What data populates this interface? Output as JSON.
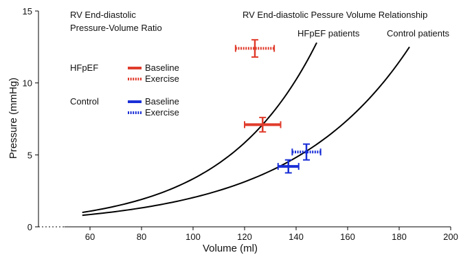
{
  "chart_data": {
    "type": "scatter",
    "xlabel": "Volume (ml)",
    "ylabel": "Pressure (mmHg)",
    "xlim": [
      40,
      200
    ],
    "ylim": [
      0,
      15
    ],
    "x_ticks": [
      60,
      80,
      100,
      120,
      140,
      160,
      180,
      200
    ],
    "y_ticks": [
      0,
      5,
      10,
      15
    ],
    "grid": false,
    "annotations": {
      "ratio_title_line1": "RV End-diastolic",
      "ratio_title_line2": "Pressure-Volume Ratio",
      "relationship_title": "RV End-diastolic Pessure Volume Relationship",
      "hfpef_curve_label": "HFpEF patients",
      "control_curve_label": "Control patients"
    },
    "legend": {
      "placement": "left",
      "groups": [
        {
          "group": "HFpEF",
          "color": "#e03c2c",
          "entries": [
            {
              "label": "Baseline",
              "style": "solid"
            },
            {
              "label": "Exercise",
              "style": "dotted"
            }
          ]
        },
        {
          "group": "Control",
          "color": "#1a2fd6",
          "entries": [
            {
              "label": "Baseline",
              "style": "solid"
            },
            {
              "label": "Exercise",
              "style": "dotted"
            }
          ]
        }
      ]
    },
    "curves": [
      {
        "label_key": "hfpef",
        "color": "#000000",
        "x_start": 57,
        "x_end": 148,
        "y_start": 1.0,
        "y_end": 12.8
      },
      {
        "label_key": "control",
        "color": "#000000",
        "x_start": 57,
        "x_end": 184,
        "y_start": 0.8,
        "y_end": 12.5
      }
    ],
    "points": [
      {
        "group": "HFpEF",
        "condition": "Baseline",
        "style": "solid",
        "color": "#e03c2c",
        "x": 127,
        "y": 7.1,
        "x_err": 7,
        "y_err": 0.5
      },
      {
        "group": "HFpEF",
        "condition": "Exercise",
        "style": "dotted",
        "color": "#e03c2c",
        "x": 124,
        "y": 12.4,
        "x_err": 7.5,
        "y_err": 0.6
      },
      {
        "group": "Control",
        "condition": "Baseline",
        "style": "solid",
        "color": "#1a2fd6",
        "x": 137,
        "y": 4.2,
        "x_err": 4,
        "y_err": 0.45
      },
      {
        "group": "Control",
        "condition": "Exercise",
        "style": "dotted",
        "color": "#1a2fd6",
        "x": 144,
        "y": 5.2,
        "x_err": 5.5,
        "y_err": 0.55
      }
    ]
  }
}
